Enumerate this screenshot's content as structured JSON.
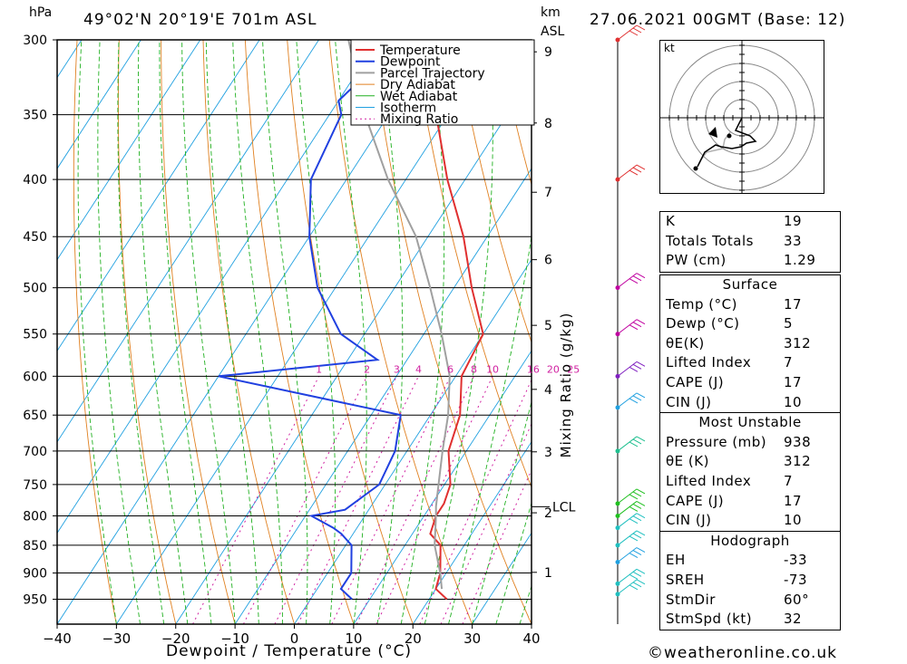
{
  "header": {
    "location": "49°02'N  20°19'E  701m  ASL",
    "datetime": "27.06.2021  00GMT  (Base: 12)",
    "pressure_unit": "hPa",
    "height_unit_top": "km",
    "height_unit_bottom": "ASL"
  },
  "footer": {
    "copyright": "©weatheronline.co.uk"
  },
  "hodograph_unit": "kt",
  "indices": {
    "K_label": "K",
    "K": "19",
    "TT_label": "Totals Totals",
    "TT": "33",
    "PW_label": "PW (cm)",
    "PW": "1.29"
  },
  "surface": {
    "title": "Surface",
    "temp_label": "Temp (°C)",
    "temp": "17",
    "dewp_label": "Dewp (°C)",
    "dewp": "5",
    "theta_label": "θE(K)",
    "theta": "312",
    "li_label": "Lifted Index",
    "li": "7",
    "cape_label": "CAPE (J)",
    "cape": "17",
    "cin_label": "CIN (J)",
    "cin": "10"
  },
  "most_unstable": {
    "title": "Most Unstable",
    "pres_label": "Pressure (mb)",
    "pres": "938",
    "theta_label": "θE (K)",
    "theta": "312",
    "li_label": "Lifted Index",
    "li": "7",
    "cape_label": "CAPE (J)",
    "cape": "17",
    "cin_label": "CIN (J)",
    "cin": "10"
  },
  "hodograph": {
    "title": "Hodograph",
    "eh_label": "EH",
    "eh": "-33",
    "sreh_label": "SREH",
    "sreh": "-73",
    "stmdir_label": "StmDir",
    "stmdir": "60°",
    "stmspd_label": "StmSpd (kt)",
    "stmspd": "32"
  },
  "chart_data": {
    "type": "line",
    "subtype": "skew-T log-P sounding",
    "xlabel": "Dewpoint / Temperature (°C)",
    "ylabel": "Mixing Ratio (g/kg)",
    "x_ticks": [
      -40,
      -30,
      -20,
      -10,
      0,
      10,
      20,
      30,
      40
    ],
    "xlim": [
      -40,
      40
    ],
    "pressure_levels": [
      300,
      350,
      400,
      450,
      500,
      550,
      600,
      650,
      700,
      750,
      800,
      850,
      900,
      950
    ],
    "height_ticks_km": [
      1,
      2,
      3,
      4,
      5,
      6,
      7,
      8,
      9
    ],
    "lcl_label": "LCL",
    "mixing_ratio_labels": [
      "1",
      "2",
      "3",
      "4",
      "6",
      "8",
      "10",
      "16",
      "20",
      "25"
    ],
    "legend": [
      "Temperature",
      "Dewpoint",
      "Parcel Trajectory",
      "Dry Adiabat",
      "Wet Adiabat",
      "Isotherm",
      "Mixing Ratio"
    ],
    "legend_placement": "top-center",
    "colors": {
      "temperature": "#e03030",
      "dewpoint": "#2040e0",
      "parcel": "#a0a0a0",
      "dry_adiabat": "#e08020",
      "wet_adiabat": "#20b020",
      "isotherm": "#20a0e0",
      "mixing_ratio": "#d020a0"
    },
    "series": [
      {
        "name": "Temperature",
        "points": [
          [
            300,
            -39
          ],
          [
            350,
            -32
          ],
          [
            400,
            -23
          ],
          [
            450,
            -14
          ],
          [
            500,
            -7
          ],
          [
            550,
            0
          ],
          [
            600,
            1
          ],
          [
            650,
            5
          ],
          [
            700,
            7
          ],
          [
            750,
            11
          ],
          [
            780,
            12
          ],
          [
            800,
            12
          ],
          [
            830,
            13
          ],
          [
            850,
            16
          ],
          [
            900,
            19
          ],
          [
            930,
            20
          ],
          [
            950,
            23
          ]
        ]
      },
      {
        "name": "Dewpoint",
        "points": [
          [
            300,
            -54
          ],
          [
            320,
            -48
          ],
          [
            340,
            -50
          ],
          [
            350,
            -48
          ],
          [
            400,
            -46
          ],
          [
            450,
            -40
          ],
          [
            500,
            -33
          ],
          [
            550,
            -24
          ],
          [
            580,
            -15
          ],
          [
            600,
            -40
          ],
          [
            650,
            -5
          ],
          [
            700,
            -2
          ],
          [
            750,
            -1
          ],
          [
            790,
            -4
          ],
          [
            800,
            -9
          ],
          [
            820,
            -4
          ],
          [
            830,
            -2
          ],
          [
            850,
            1
          ],
          [
            900,
            4
          ],
          [
            930,
            4
          ],
          [
            950,
            7
          ]
        ]
      },
      {
        "name": "Parcel Trajectory",
        "points": [
          [
            300,
            -55
          ],
          [
            350,
            -44
          ],
          [
            400,
            -33
          ],
          [
            450,
            -22
          ],
          [
            500,
            -14
          ],
          [
            550,
            -7
          ],
          [
            600,
            -1
          ],
          [
            650,
            3
          ],
          [
            700,
            6
          ],
          [
            750,
            9
          ],
          [
            785,
            11
          ],
          [
            800,
            12
          ],
          [
            850,
            15
          ],
          [
            900,
            19
          ],
          [
            930,
            21
          ]
        ]
      }
    ]
  }
}
